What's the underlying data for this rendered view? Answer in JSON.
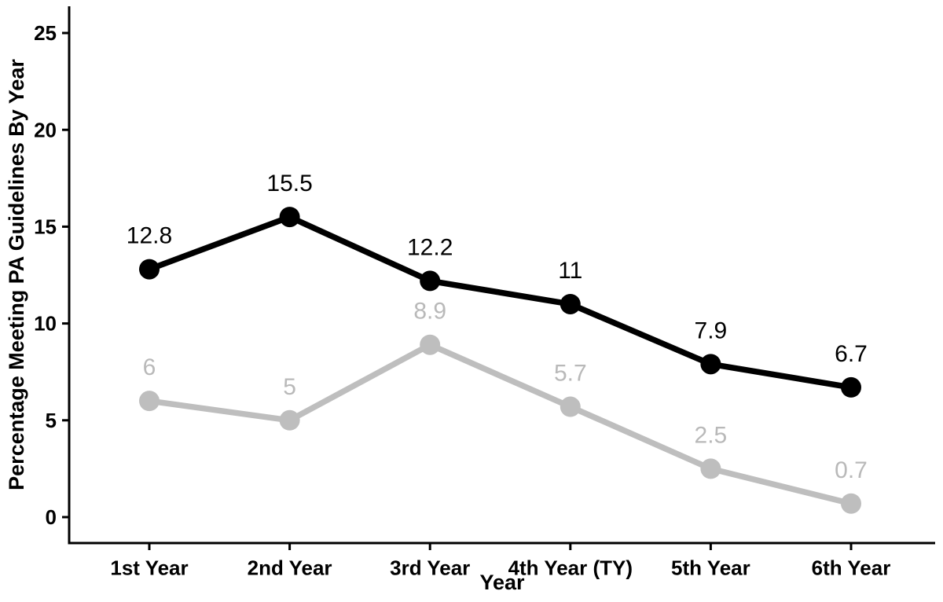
{
  "chart_data": {
    "type": "line",
    "title": "",
    "categories": [
      "1st Year",
      "2nd Year",
      "3rd Year",
      "4th Year (TY)",
      "5th Year",
      "6th Year"
    ],
    "series": [
      {
        "name": "gray-series",
        "color": "#bebebe",
        "label_color": "#b9b9b9",
        "values": [
          6,
          5,
          8.9,
          5.7,
          2.5,
          0.7
        ],
        "labels": [
          "6",
          "5",
          "8.9",
          "5.7",
          "2.5",
          "0.7"
        ]
      },
      {
        "name": "black-series",
        "color": "#000000",
        "label_color": "#000000",
        "values": [
          12.8,
          15.5,
          12.2,
          11,
          7.9,
          6.7
        ],
        "labels": [
          "12.8",
          "15.5",
          "12.2",
          "11",
          "7.9",
          "6.7"
        ]
      }
    ],
    "xlabel": "Year",
    "ylabel": "Percentage Meeting PA Guidelines By Year",
    "ylim": [
      0,
      25
    ],
    "yticks": [
      "0",
      "5",
      "10",
      "15",
      "20",
      "25"
    ],
    "grid": false,
    "legend": "none"
  },
  "colors": {
    "background": "#ffffff",
    "axis_line": "#000000",
    "tick_text": "#000000",
    "axis_title_text": "#000000"
  }
}
